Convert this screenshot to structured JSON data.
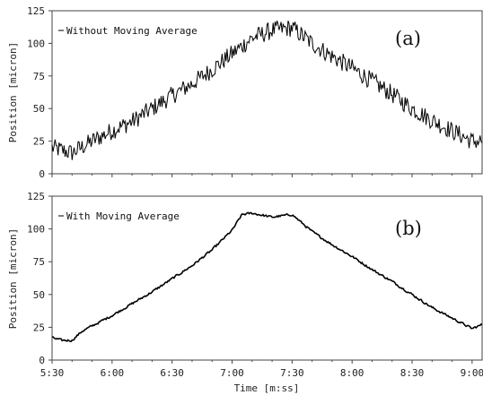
{
  "chart_data": [
    {
      "type": "line",
      "panel_label": "(a)",
      "legend": "Without Moving Average",
      "ylabel": "Position [micron]",
      "xlabel": "",
      "ylim": [
        0,
        125
      ],
      "yticks": [
        "0",
        "25",
        "50",
        "75",
        "100",
        "125"
      ],
      "xlim": [
        "5:30",
        "9:05"
      ],
      "xticks": [],
      "noise": 7,
      "series": [
        {
          "name": "Without Moving Average",
          "x": [
            "5:30",
            "5:40",
            "5:50",
            "6:00",
            "6:10",
            "6:20",
            "6:30",
            "6:40",
            "6:50",
            "7:00",
            "7:10",
            "7:20",
            "7:30",
            "7:40",
            "7:50",
            "8:00",
            "8:10",
            "8:20",
            "8:30",
            "8:40",
            "8:50",
            "9:00",
            "9:05"
          ],
          "y": [
            20,
            16,
            25,
            33,
            40,
            50,
            60,
            69,
            80,
            92,
            104,
            110,
            112,
            100,
            90,
            81,
            71,
            61,
            50,
            41,
            33,
            25,
            25
          ]
        }
      ]
    },
    {
      "type": "line",
      "panel_label": "(b)",
      "legend": "With Moving Average",
      "ylabel": "Position [micron]",
      "xlabel": "Time [m:ss]",
      "ylim": [
        0,
        125
      ],
      "yticks": [
        "0",
        "25",
        "50",
        "75",
        "100",
        "125"
      ],
      "xlim": [
        "5:30",
        "9:05"
      ],
      "xticks": [
        "5:30",
        "6:00",
        "6:30",
        "7:00",
        "7:30",
        "8:00",
        "8:30",
        "9:00"
      ],
      "noise": 1.2,
      "series": [
        {
          "name": "With Moving Average",
          "x": [
            "5:30",
            "5:35",
            "5:40",
            "5:45",
            "5:50",
            "6:00",
            "6:10",
            "6:20",
            "6:30",
            "6:40",
            "6:50",
            "7:00",
            "7:05",
            "7:10",
            "7:20",
            "7:30",
            "7:40",
            "7:50",
            "8:00",
            "8:10",
            "8:20",
            "8:30",
            "8:40",
            "8:50",
            "9:00",
            "9:05"
          ],
          "y": [
            17,
            15,
            15,
            22,
            26,
            34,
            43,
            52,
            62,
            72,
            84,
            99,
            111,
            112,
            109,
            111,
            98,
            88,
            79,
            69,
            60,
            50,
            40,
            32,
            24,
            27
          ]
        }
      ]
    }
  ]
}
